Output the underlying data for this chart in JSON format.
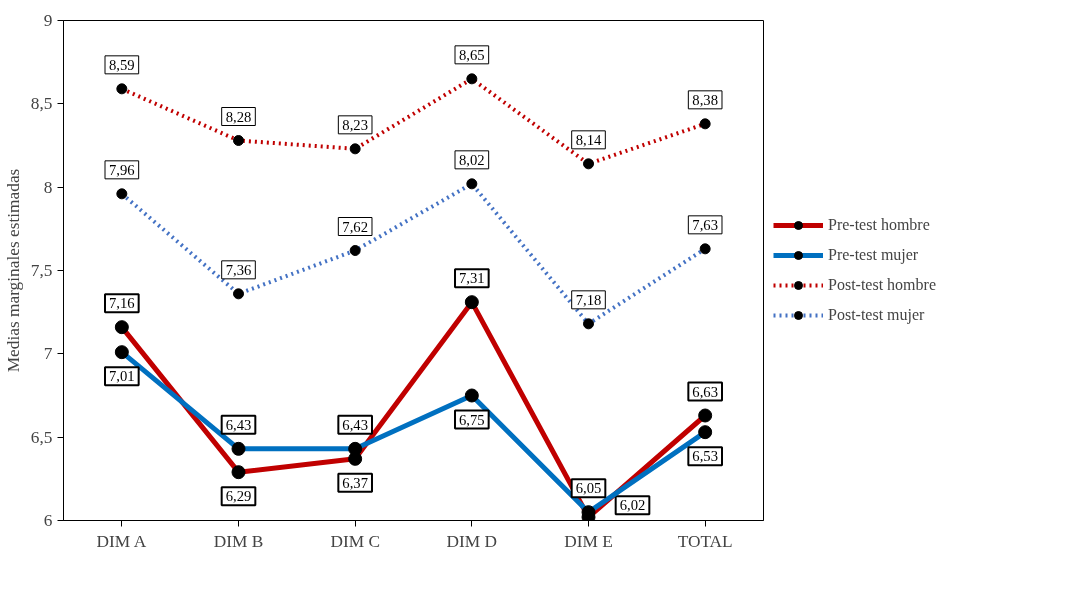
{
  "chart_data": {
    "type": "line",
    "ylabel": "Medias marginales estimadas",
    "categories": [
      "DIM A",
      "DIM B",
      "DIM C",
      "DIM D",
      "DIM E",
      "TOTAL"
    ],
    "ylim": [
      6,
      9
    ],
    "yticks": [
      6,
      {
        "value": 6.5,
        "label": "6,5"
      },
      7,
      {
        "value": 7.5,
        "label": "7,5"
      },
      8,
      {
        "value": 8.5,
        "label": "8,5"
      },
      9
    ],
    "grid": false,
    "legend": "right",
    "marker": "circle",
    "data_labels": true,
    "series": [
      {
        "name": "Pre-test hombre",
        "color": "#c00000",
        "line_style": "solid",
        "values": [
          7.16,
          6.29,
          6.37,
          7.31,
          6.02,
          6.63
        ],
        "value_labels": [
          "7,16",
          "6,29",
          "6,37",
          "7,31",
          "6,02",
          "6,63"
        ]
      },
      {
        "name": "Pre-test mujer",
        "color": "#0070c0",
        "line_style": "solid",
        "values": [
          7.01,
          6.43,
          6.43,
          6.75,
          6.05,
          6.53
        ],
        "value_labels": [
          "7,01",
          "6,43",
          "6,43",
          "6,75",
          "6,05",
          "6,53"
        ]
      },
      {
        "name": "Post-test hombre",
        "color": "#c00000",
        "line_style": "dotted",
        "values": [
          8.59,
          8.28,
          8.23,
          8.65,
          8.14,
          8.38
        ],
        "value_labels": [
          "8,59",
          "8,28",
          "8,23",
          "8,65",
          "8,14",
          "8,38"
        ]
      },
      {
        "name": "Post-test mujer",
        "color": "#4472c4",
        "line_style": "dotted",
        "values": [
          7.96,
          7.36,
          7.62,
          8.02,
          7.18,
          7.63
        ],
        "value_labels": [
          "7,96",
          "7,36",
          "7,62",
          "8,02",
          "7,18",
          "7,63"
        ]
      }
    ]
  }
}
